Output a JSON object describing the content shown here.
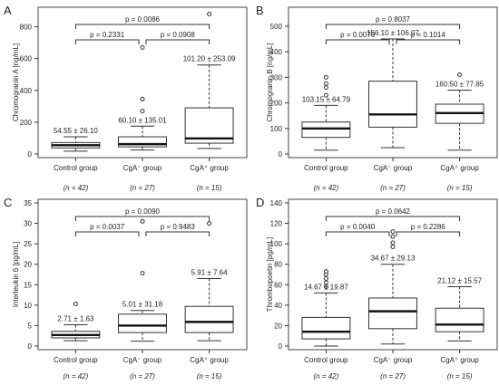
{
  "chart_data": [
    {
      "type": "box",
      "panel_letter": "A",
      "ylabel": "Chromogranin A [ng/mL]",
      "ylim": [
        0,
        900
      ],
      "yticks": [
        0,
        200,
        400,
        600,
        800
      ],
      "categories": [
        "Control group",
        "CgA⁻ group",
        "CgA⁺ group"
      ],
      "group_sizes": [
        "(n = 42)",
        "(n = 27)",
        "(n = 15)"
      ],
      "boxes": [
        {
          "low": 18,
          "q1": 38,
          "median": 55,
          "q3": 72,
          "high": 108,
          "outliers": []
        },
        {
          "low": 25,
          "q1": 45,
          "median": 62,
          "q3": 108,
          "high": 175,
          "outliers": [
            270,
            345,
            670
          ]
        },
        {
          "low": 35,
          "q1": 68,
          "median": 98,
          "q3": 290,
          "high": 560,
          "outliers": [
            880
          ]
        }
      ],
      "mean_sd_labels": [
        "54.55 ± 26.10",
        "60.10 ± 135.01",
        "101.20 ± 253.09"
      ],
      "comparisons": [
        {
          "from": 0,
          "to": 1,
          "label": "p = 0.2331"
        },
        {
          "from": 1,
          "to": 2,
          "label": "p = 0.0908"
        },
        {
          "from": 0,
          "to": 2,
          "label": "p = 0.0086"
        }
      ]
    },
    {
      "type": "box",
      "panel_letter": "B",
      "ylabel": "Chromogranin B [ng/mL]",
      "ylim": [
        0,
        560
      ],
      "yticks": [
        0,
        100,
        200,
        300,
        400,
        500
      ],
      "categories": [
        "Control group",
        "CgA⁻ group",
        "CgA⁺ group"
      ],
      "group_sizes": [
        "(n = 42)",
        "(n = 27)",
        "(n = 15)"
      ],
      "boxes": [
        {
          "low": 15,
          "q1": 65,
          "median": 100,
          "q3": 125,
          "high": 190,
          "outliers": [
            230,
            260,
            275,
            300
          ]
        },
        {
          "low": 25,
          "q1": 105,
          "median": 155,
          "q3": 285,
          "high": 450,
          "outliers": []
        },
        {
          "low": 15,
          "q1": 120,
          "median": 160,
          "q3": 195,
          "high": 250,
          "outliers": [
            310
          ]
        }
      ],
      "mean_sd_labels": [
        "103.15 ± 64.79",
        "156.10 ± 106.07",
        "160.50 ± 77.85"
      ],
      "comparisons": [
        {
          "from": 0,
          "to": 1,
          "label": "p = 0.0070"
        },
        {
          "from": 1,
          "to": 2,
          "label": "p = 0.1014"
        },
        {
          "from": 0,
          "to": 2,
          "label": "p = 0.8037"
        }
      ]
    },
    {
      "type": "box",
      "panel_letter": "C",
      "ylabel": "Interleukin 6 [pg/mL]",
      "ylim": [
        0,
        35
      ],
      "yticks": [
        0,
        5,
        10,
        15,
        20,
        25,
        30,
        35
      ],
      "categories": [
        "Control group",
        "CgA⁻ group",
        "CgA⁺ group"
      ],
      "group_sizes": [
        "(n = 42)",
        "(n = 27)",
        "(n = 15)"
      ],
      "boxes": [
        {
          "low": 1.3,
          "q1": 2.0,
          "median": 2.7,
          "q3": 3.6,
          "high": 5.2,
          "outliers": [
            10.3
          ]
        },
        {
          "low": 1.2,
          "q1": 3.3,
          "median": 5.0,
          "q3": 7.8,
          "high": 8.7,
          "outliers": [
            17.8,
            30.5
          ]
        },
        {
          "low": 1.3,
          "q1": 3.3,
          "median": 5.9,
          "q3": 9.7,
          "high": 16.5,
          "outliers": [
            30.0
          ]
        }
      ],
      "mean_sd_labels": [
        "2.71 ± 1.63",
        "5.01 ± 31.18",
        "5.91 ± 7.64"
      ],
      "comparisons": [
        {
          "from": 0,
          "to": 1,
          "label": "p = 0.0037"
        },
        {
          "from": 1,
          "to": 2,
          "label": "p = 0.9483"
        },
        {
          "from": 0,
          "to": 2,
          "label": "p = 0.0090"
        }
      ]
    },
    {
      "type": "box",
      "panel_letter": "D",
      "ylabel": "Thrombopoetin [pg/mL]",
      "ylim": [
        0,
        140
      ],
      "yticks": [
        0,
        20,
        40,
        60,
        80,
        100,
        120,
        140
      ],
      "categories": [
        "Control group",
        "CgA⁻ group",
        "CgA⁺ group"
      ],
      "group_sizes": [
        "(n = 42)",
        "(n = 27)",
        "(n = 15)"
      ],
      "boxes": [
        {
          "low": 0,
          "q1": 7,
          "median": 14,
          "q3": 28,
          "high": 52,
          "outliers": [
            58,
            62,
            66,
            70,
            73
          ]
        },
        {
          "low": 2,
          "q1": 17,
          "median": 34,
          "q3": 47,
          "high": 80,
          "outliers": [
            97,
            101,
            107,
            112
          ]
        },
        {
          "low": 5,
          "q1": 14,
          "median": 21,
          "q3": 37,
          "high": 58,
          "outliers": []
        }
      ],
      "mean_sd_labels": [
        "14.67 ± 19.87",
        "34.67 ± 29.13",
        "21.12 ± 15.57"
      ],
      "comparisons": [
        {
          "from": 0,
          "to": 1,
          "label": "p = 0.0040"
        },
        {
          "from": 1,
          "to": 2,
          "label": "p = 0.2286"
        },
        {
          "from": 0,
          "to": 2,
          "label": "p = 0.0642"
        }
      ]
    }
  ]
}
